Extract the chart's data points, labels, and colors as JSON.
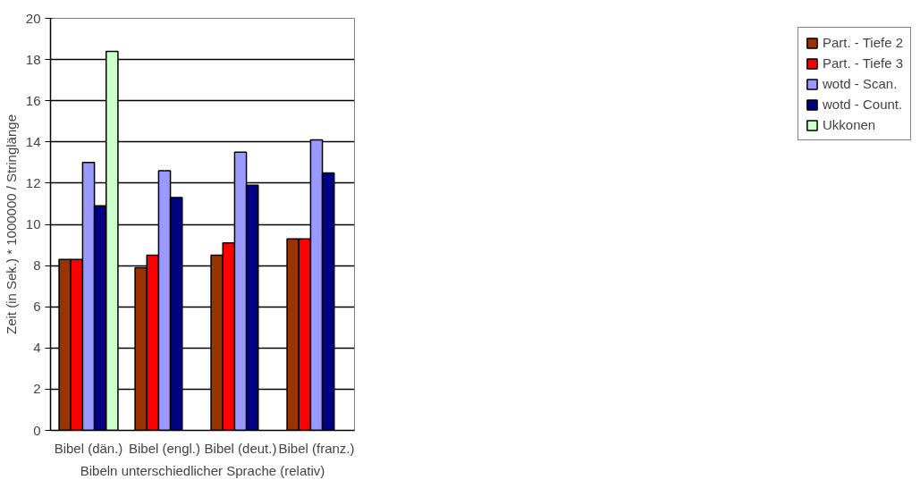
{
  "chart_data": {
    "type": "bar",
    "xlabel": "Bibeln unterschiedlicher Sprache (relativ)",
    "ylabel": "Zeit (in Sek.) * 1000000 / Stringlänge",
    "categories": [
      "Bibel (dän.)",
      "Bibel (engl.)",
      "Bibel (deut.)",
      "Bibel (franz.)"
    ],
    "series": [
      {
        "name": "Part. - Tiefe 2",
        "color": "#993300",
        "values": [
          8.3,
          7.9,
          8.5,
          9.3
        ]
      },
      {
        "name": "Part. - Tiefe 3",
        "color": "#ff0000",
        "values": [
          8.3,
          8.5,
          9.1,
          9.3
        ]
      },
      {
        "name": "wotd - Scan.",
        "color": "#9999ff",
        "values": [
          13.0,
          12.6,
          13.5,
          14.1
        ]
      },
      {
        "name": "wotd - Count.",
        "color": "#000080",
        "values": [
          10.9,
          11.3,
          11.9,
          12.5
        ]
      },
      {
        "name": "Ukkonen",
        "color": "#ccffcc",
        "values": [
          18.4,
          null,
          null,
          null
        ]
      }
    ],
    "ylim": [
      0,
      20
    ],
    "yticks": [
      0,
      2,
      4,
      6,
      8,
      10,
      12,
      14,
      16,
      18,
      20
    ],
    "grid": "y",
    "legend": "right"
  }
}
